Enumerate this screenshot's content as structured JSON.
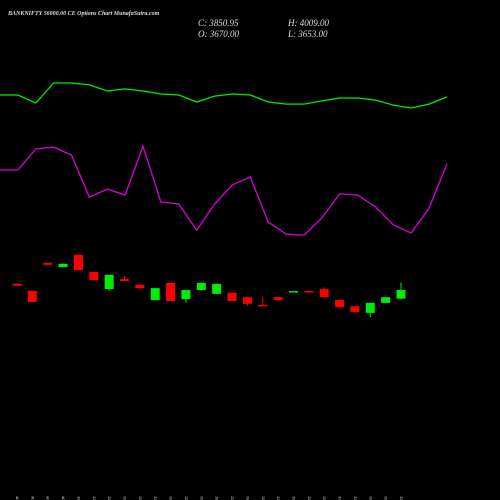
{
  "chart_data": {
    "type": "candlestick",
    "title": "BANKNIFTY 56000.00 CE Options Chart MunafaSutra.com",
    "ohlc_text": {
      "close": "C: 3850.95",
      "high": "H: 4009.00",
      "open": "O: 3670.00",
      "low": "L: 3653.00"
    },
    "categories": [
      "24 Nov",
      "25 Nov",
      "27 Nov",
      "28 Nov",
      "01 Dec",
      "02 Dec",
      "03 Dec",
      "04 Dec",
      "05 Dec",
      "08 Dec",
      "09 Dec",
      "10 Dec",
      "11 Dec",
      "12 Dec",
      "15 Dec",
      "16 Dec",
      "17 Dec",
      "18 Dec",
      "19 Dec",
      "22 Dec",
      "23 Dec",
      "24 Dec",
      "26 Dec",
      "29 Dec",
      "30 Dec",
      "31 Dec"
    ],
    "open": [
      3980,
      3830,
      4420,
      4330,
      4590,
      4230,
      3870,
      4080,
      3960,
      3640,
      4000,
      3660,
      3850,
      3770,
      3790,
      3700,
      3540,
      3700,
      3810,
      3830,
      3870,
      3640,
      3510,
      3370,
      3580,
      3670
    ],
    "high": [
      3990,
      3840,
      4420,
      4400,
      4590,
      4230,
      4170,
      4150,
      3960,
      3890,
      4000,
      3850,
      4000,
      3980,
      3790,
      3700,
      3700,
      3700,
      3830,
      3850,
      3910,
      3640,
      3510,
      3580,
      3700,
      4009
    ],
    "low": [
      3930,
      3600,
      4380,
      4330,
      4270,
      4060,
      3830,
      4040,
      3850,
      3640,
      3620,
      3580,
      3850,
      3770,
      3620,
      3520,
      3520,
      3620,
      3810,
      3810,
      3700,
      3490,
      3350,
      3280,
      3580,
      3653
    ],
    "close": [
      3940,
      3600,
      4380,
      4400,
      4270,
      4060,
      4170,
      4040,
      3890,
      3890,
      3620,
      3850,
      4000,
      3980,
      3620,
      3560,
      3520,
      3640,
      3830,
      3810,
      3700,
      3490,
      3390,
      3580,
      3700,
      3850.95
    ],
    "ylim": [
      1121,
      9941
    ],
    "up_color": "#00ee00",
    "down_color": "#ff0000",
    "indicators": {
      "ylim": [
        0,
        100
      ],
      "series": [
        {
          "color": "#00ee00",
          "values": [
            73.8,
            73.8,
            70,
            79.5,
            79.5,
            78.6,
            75.7,
            76.7,
            75.7,
            74.3,
            73.8,
            70.5,
            73.3,
            74.3,
            73.8,
            70.5,
            69.5,
            69.5,
            71,
            72.4,
            72.4,
            71.4,
            69,
            67.6,
            69.5,
            72.9
          ]
        },
        {
          "color": "#dd00dd",
          "values": [
            38.1,
            38.1,
            48.1,
            49,
            45.2,
            25.2,
            29,
            26.2,
            49.5,
            22.9,
            21.9,
            9.5,
            21.9,
            31,
            34.8,
            13.3,
            7.6,
            7.1,
            15.2,
            26.7,
            26.2,
            20.5,
            11.9,
            8.1,
            20,
            41
          ]
        }
      ]
    }
  }
}
